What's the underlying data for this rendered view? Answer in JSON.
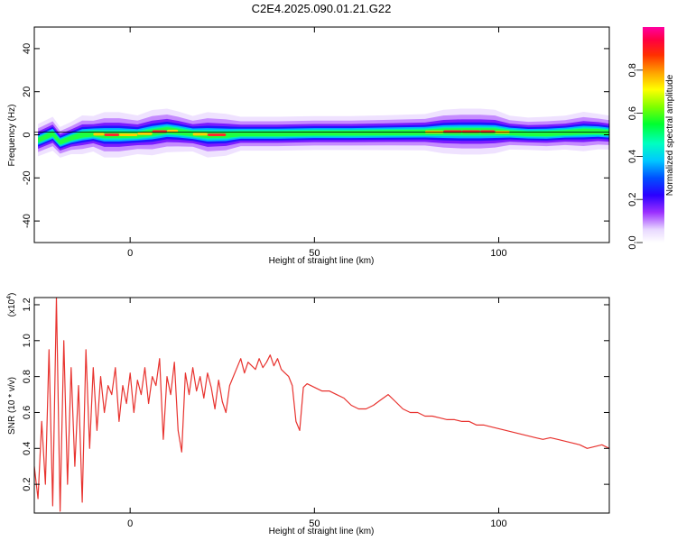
{
  "title": "C2E4.2025.090.01.21.G22",
  "chart_data": [
    {
      "type": "heatmap",
      "xlabel": "Height of straight line (km)",
      "ylabel": "Frequency (Hz)",
      "xlim": [
        -26,
        130
      ],
      "ylim": [
        -50,
        50
      ],
      "x_ticks": [
        0,
        50,
        100
      ],
      "y_ticks": [
        40,
        20,
        0,
        -20,
        -40
      ],
      "colorbar": {
        "label": "Normalized spectral amplitude",
        "range": [
          0,
          1
        ],
        "ticks": [
          "0.0",
          "0.2",
          "0.4",
          "0.6",
          "0.8"
        ]
      },
      "ridge": [
        {
          "x": -25,
          "f": -2.5,
          "amp": 0.5
        },
        {
          "x": -21,
          "f": 0.5,
          "amp": 0.55
        },
        {
          "x": -19,
          "f": -3.5,
          "amp": 0.45
        },
        {
          "x": -16,
          "f": -1.5,
          "amp": 0.5
        },
        {
          "x": -13,
          "f": 0.0,
          "amp": 0.7
        },
        {
          "x": -10,
          "f": 0.5,
          "amp": 0.6
        },
        {
          "x": -7,
          "f": 0.0,
          "amp": 0.9
        },
        {
          "x": -3,
          "f": 0.0,
          "amp": 0.9
        },
        {
          "x": 2,
          "f": 0.0,
          "amp": 0.7
        },
        {
          "x": 6,
          "f": 1.0,
          "amp": 0.9
        },
        {
          "x": 10,
          "f": 2.0,
          "amp": 0.85
        },
        {
          "x": 13,
          "f": 1.5,
          "amp": 0.75
        },
        {
          "x": 17,
          "f": 0.5,
          "amp": 0.6
        },
        {
          "x": 21,
          "f": 0.0,
          "amp": 0.9
        },
        {
          "x": 26,
          "f": 0.0,
          "amp": 0.8
        },
        {
          "x": 30,
          "f": 0.5,
          "amp": 0.55
        },
        {
          "x": 40,
          "f": 0.5,
          "amp": 0.55
        },
        {
          "x": 50,
          "f": 0.8,
          "amp": 0.55
        },
        {
          "x": 60,
          "f": 0.8,
          "amp": 0.55
        },
        {
          "x": 70,
          "f": 1.0,
          "amp": 0.58
        },
        {
          "x": 80,
          "f": 1.2,
          "amp": 0.62
        },
        {
          "x": 85,
          "f": 1.5,
          "amp": 0.85
        },
        {
          "x": 90,
          "f": 1.5,
          "amp": 0.92
        },
        {
          "x": 95,
          "f": 1.5,
          "amp": 0.92
        },
        {
          "x": 99,
          "f": 1.5,
          "amp": 0.85
        },
        {
          "x": 103,
          "f": 1.0,
          "amp": 0.55
        },
        {
          "x": 108,
          "f": 0.5,
          "amp": 0.5
        },
        {
          "x": 113,
          "f": 0.5,
          "amp": 0.55
        },
        {
          "x": 118,
          "f": 1.0,
          "amp": 0.55
        },
        {
          "x": 123,
          "f": 1.5,
          "amp": 0.72
        },
        {
          "x": 127,
          "f": 1.5,
          "amp": 0.6
        },
        {
          "x": 130,
          "f": 1.0,
          "amp": 0.55
        }
      ]
    },
    {
      "type": "line",
      "xlabel": "Height of straight line (km)",
      "ylabel": "SNR (10 * v/v)",
      "y_scale_label": "(x10",
      "y_scale_exponent": "4",
      "y_scale_close": ")",
      "xlim": [
        -26,
        130
      ],
      "ylim": [
        0.04,
        1.24
      ],
      "x_ticks": [
        0,
        50,
        100
      ],
      "y_ticks": [
        0.2,
        0.4,
        0.6,
        0.8,
        1.0,
        1.2
      ],
      "color": "#e8332f",
      "series": [
        {
          "x": [
            -26,
            -25,
            -24,
            -23,
            -22,
            -21,
            -20,
            -19,
            -18,
            -17,
            -16,
            -15,
            -14,
            -13,
            -12,
            -11,
            -10,
            -9,
            -8,
            -7,
            -6,
            -5,
            -4,
            -3,
            -2,
            -1,
            0,
            1,
            2,
            3,
            4,
            5,
            6,
            7,
            8,
            9,
            10,
            11,
            12,
            13,
            14,
            15,
            16,
            17,
            18,
            19,
            20,
            21,
            22,
            23,
            24,
            25,
            26,
            27,
            28,
            29,
            30,
            31,
            32,
            33,
            34,
            35,
            36,
            37,
            38,
            39,
            40,
            41,
            42,
            43,
            44,
            45,
            46,
            47,
            48,
            50,
            52,
            54,
            56,
            58,
            60,
            62,
            64,
            66,
            68,
            70,
            72,
            74,
            76,
            78,
            80,
            82,
            84,
            86,
            88,
            90,
            92,
            94,
            96,
            98,
            100,
            102,
            104,
            106,
            108,
            110,
            112,
            114,
            116,
            118,
            120,
            122,
            124,
            126,
            128,
            130
          ],
          "y": [
            0.3,
            0.12,
            0.55,
            0.2,
            0.95,
            0.08,
            1.24,
            0.05,
            1.0,
            0.2,
            0.85,
            0.3,
            0.75,
            0.1,
            0.95,
            0.4,
            0.85,
            0.5,
            0.8,
            0.6,
            0.75,
            0.7,
            0.85,
            0.55,
            0.75,
            0.65,
            0.82,
            0.6,
            0.78,
            0.7,
            0.85,
            0.65,
            0.8,
            0.75,
            0.9,
            0.45,
            0.8,
            0.7,
            0.88,
            0.5,
            0.38,
            0.82,
            0.7,
            0.85,
            0.72,
            0.8,
            0.68,
            0.82,
            0.74,
            0.62,
            0.78,
            0.66,
            0.6,
            0.75,
            0.8,
            0.85,
            0.9,
            0.82,
            0.88,
            0.86,
            0.84,
            0.9,
            0.85,
            0.88,
            0.92,
            0.86,
            0.9,
            0.84,
            0.82,
            0.8,
            0.75,
            0.55,
            0.5,
            0.74,
            0.76,
            0.74,
            0.72,
            0.72,
            0.7,
            0.68,
            0.64,
            0.62,
            0.62,
            0.64,
            0.67,
            0.7,
            0.66,
            0.62,
            0.6,
            0.6,
            0.58,
            0.58,
            0.57,
            0.56,
            0.56,
            0.55,
            0.55,
            0.53,
            0.53,
            0.52,
            0.51,
            0.5,
            0.49,
            0.48,
            0.47,
            0.46,
            0.45,
            0.46,
            0.45,
            0.44,
            0.43,
            0.42,
            0.4,
            0.41,
            0.42,
            0.4
          ]
        }
      ]
    }
  ]
}
